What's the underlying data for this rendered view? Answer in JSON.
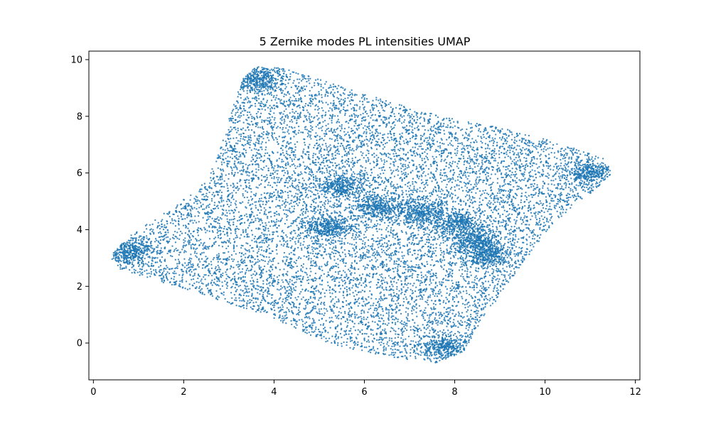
{
  "chart_data": {
    "type": "scatter",
    "title": "5 Zernike modes PL intensities UMAP",
    "xlabel": "",
    "ylabel": "",
    "xlim": [
      -0.1,
      12.1
    ],
    "ylim": [
      -1.3,
      10.3
    ],
    "x_ticks": [
      0,
      2,
      4,
      6,
      8,
      10,
      12
    ],
    "y_ticks": [
      0,
      2,
      4,
      6,
      8,
      10
    ],
    "grid": false,
    "legend": "none",
    "marker_color": "#1f77b4",
    "point_count_estimate": 50000,
    "region_outline": {
      "x": [
        0.45,
        0.8,
        1.5,
        2.3,
        2.7,
        3.0,
        3.3,
        3.6,
        4.2,
        5.0,
        6.0,
        7.0,
        8.0,
        9.0,
        10.0,
        10.8,
        11.3,
        11.5,
        11.1,
        10.6,
        10.0,
        9.6,
        9.1,
        8.6,
        8.2,
        7.6,
        7.0,
        6.2,
        5.2,
        4.5,
        3.8,
        3.0,
        2.0,
        1.2,
        0.6,
        0.4
      ],
      "y": [
        3.2,
        3.8,
        4.5,
        5.4,
        6.3,
        7.9,
        9.3,
        9.75,
        9.7,
        9.3,
        8.8,
        8.3,
        7.9,
        7.6,
        7.2,
        6.8,
        6.5,
        6.0,
        5.4,
        4.8,
        3.9,
        3.0,
        1.9,
        0.8,
        -0.3,
        -0.7,
        -0.6,
        -0.4,
        0.0,
        0.5,
        1.0,
        1.4,
        1.9,
        2.3,
        2.6,
        2.9
      ]
    },
    "dense_features": [
      {
        "x": 5.5,
        "y": 5.5,
        "weight": 0.9
      },
      {
        "x": 6.3,
        "y": 4.8,
        "weight": 0.9
      },
      {
        "x": 7.3,
        "y": 4.6,
        "weight": 0.8
      },
      {
        "x": 8.1,
        "y": 4.2,
        "weight": 0.9
      },
      {
        "x": 8.5,
        "y": 3.6,
        "weight": 0.8
      },
      {
        "x": 8.7,
        "y": 3.1,
        "weight": 0.7
      },
      {
        "x": 5.2,
        "y": 4.1,
        "weight": 0.6
      },
      {
        "x": 7.8,
        "y": -0.2,
        "weight": 0.8
      },
      {
        "x": 3.6,
        "y": 9.3,
        "weight": 0.7
      },
      {
        "x": 0.8,
        "y": 3.2,
        "weight": 0.7
      },
      {
        "x": 11.0,
        "y": 6.0,
        "weight": 0.7
      }
    ]
  }
}
